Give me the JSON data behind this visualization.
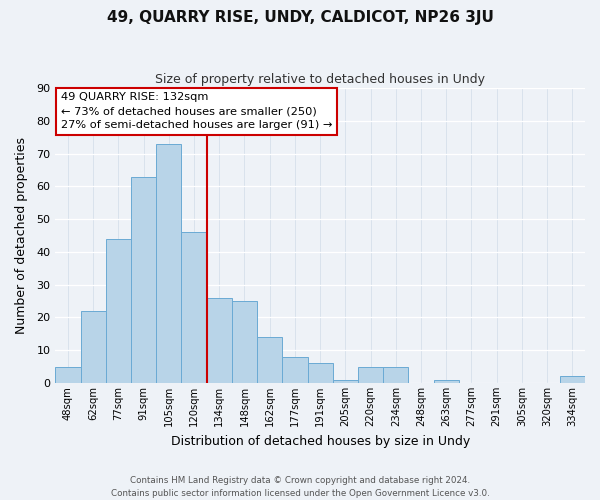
{
  "title": "49, QUARRY RISE, UNDY, CALDICOT, NP26 3JU",
  "subtitle": "Size of property relative to detached houses in Undy",
  "xlabel": "Distribution of detached houses by size in Undy",
  "ylabel": "Number of detached properties",
  "bar_labels": [
    "48sqm",
    "62sqm",
    "77sqm",
    "91sqm",
    "105sqm",
    "120sqm",
    "134sqm",
    "148sqm",
    "162sqm",
    "177sqm",
    "191sqm",
    "205sqm",
    "220sqm",
    "234sqm",
    "248sqm",
    "263sqm",
    "277sqm",
    "291sqm",
    "305sqm",
    "320sqm",
    "334sqm"
  ],
  "bar_values": [
    5,
    22,
    44,
    63,
    73,
    46,
    26,
    25,
    14,
    8,
    6,
    1,
    5,
    5,
    0,
    1,
    0,
    0,
    0,
    0,
    2
  ],
  "bar_color": "#b8d4e8",
  "bar_edge_color": "#6aaad4",
  "vline_color": "#cc0000",
  "vline_x": 6.0,
  "ylim": [
    0,
    90
  ],
  "yticks": [
    0,
    10,
    20,
    30,
    40,
    50,
    60,
    70,
    80,
    90
  ],
  "annotation_title": "49 QUARRY RISE: 132sqm",
  "annotation_line1": "← 73% of detached houses are smaller (250)",
  "annotation_line2": "27% of semi-detached houses are larger (91) →",
  "annotation_box_edge": "#cc0000",
  "footer_line1": "Contains HM Land Registry data © Crown copyright and database right 2024.",
  "footer_line2": "Contains public sector information licensed under the Open Government Licence v3.0.",
  "background_color": "#eef2f7",
  "grid_color": "#dce6f0"
}
